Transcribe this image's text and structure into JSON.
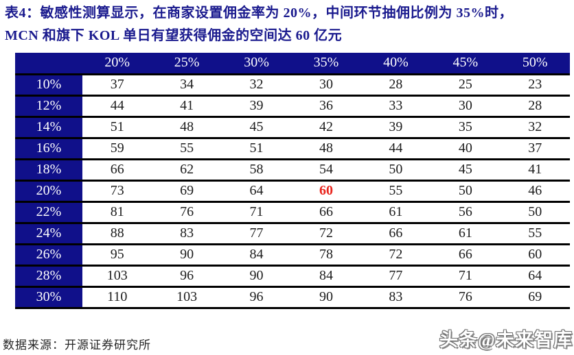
{
  "title": {
    "line1": "表4：敏感性测算显示，在商家设置佣金率为 20%，中间环节抽佣比例为 35%时，",
    "line2": "MCN 和旗下 KOL 单日有望获得佣金的空间达 60 亿元"
  },
  "chart_data": {
    "type": "table",
    "corner_label": "",
    "columns": [
      "20%",
      "25%",
      "30%",
      "35%",
      "40%",
      "45%",
      "50%"
    ],
    "rows": [
      {
        "label": "10%",
        "values": [
          37,
          34,
          32,
          30,
          28,
          25,
          23
        ]
      },
      {
        "label": "12%",
        "values": [
          44,
          41,
          39,
          36,
          33,
          30,
          28
        ]
      },
      {
        "label": "14%",
        "values": [
          51,
          48,
          45,
          42,
          39,
          35,
          32
        ]
      },
      {
        "label": "16%",
        "values": [
          59,
          55,
          51,
          48,
          44,
          40,
          37
        ]
      },
      {
        "label": "18%",
        "values": [
          66,
          62,
          58,
          54,
          50,
          45,
          41
        ]
      },
      {
        "label": "20%",
        "values": [
          73,
          69,
          64,
          60,
          55,
          50,
          46
        ]
      },
      {
        "label": "22%",
        "values": [
          81,
          76,
          71,
          66,
          61,
          56,
          50
        ]
      },
      {
        "label": "24%",
        "values": [
          88,
          83,
          77,
          72,
          66,
          61,
          55
        ]
      },
      {
        "label": "26%",
        "values": [
          95,
          90,
          84,
          78,
          72,
          66,
          60
        ]
      },
      {
        "label": "28%",
        "values": [
          103,
          96,
          90,
          84,
          77,
          71,
          64
        ]
      },
      {
        "label": "30%",
        "values": [
          110,
          103,
          96,
          90,
          83,
          76,
          69
        ]
      }
    ],
    "highlight": {
      "row_label": "20%",
      "col_label": "35%",
      "value": 60,
      "color": "#e9251d"
    }
  },
  "footer": {
    "source": "数据来源：开源证券研究所",
    "watermark": "头条@未来智库"
  },
  "colors": {
    "navy": "#10108a",
    "title_blue": "#1a1a8e",
    "highlight_red": "#e9251d",
    "row_border": "#000000"
  }
}
